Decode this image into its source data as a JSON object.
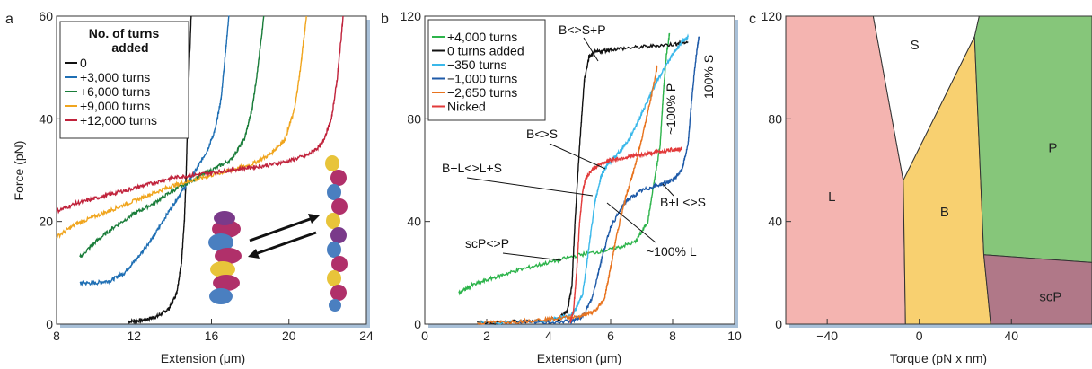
{
  "chart_data": [
    {
      "panel": "a",
      "type": "line",
      "xlabel": "Extension (μm)",
      "ylabel": "Force (pN)",
      "xlim": [
        8,
        24
      ],
      "ylim": [
        0,
        60
      ],
      "xticks": [
        8,
        12,
        16,
        20,
        24
      ],
      "yticks": [
        0,
        20,
        40,
        60
      ],
      "legend_title": "No. of turns added",
      "legend_position": "top-left",
      "series": [
        {
          "name": "0",
          "color": "#111111",
          "x": [
            11.7,
            12.5,
            13.2,
            13.8,
            14.2,
            14.45,
            14.6,
            14.7,
            14.8,
            14.95
          ],
          "y": [
            0.5,
            0.8,
            1.5,
            3,
            6,
            12,
            20,
            30,
            45,
            60
          ]
        },
        {
          "name": "+3,000 turns",
          "color": "#1f6fb4",
          "x": [
            9.2,
            10,
            10.8,
            11.5,
            12.2,
            13,
            13.8,
            14.5,
            15.2,
            15.8,
            16.2,
            16.5,
            16.7,
            16.9
          ],
          "y": [
            8,
            8,
            8.5,
            10,
            13,
            17,
            22,
            26,
            30,
            34,
            38,
            44,
            52,
            60
          ]
        },
        {
          "name": "+6,000 turns",
          "color": "#1a7d3a",
          "x": [
            9.2,
            10,
            11,
            12,
            13,
            14,
            15,
            16,
            17,
            17.7,
            18.1,
            18.4,
            18.7
          ],
          "y": [
            13,
            16,
            19,
            21.5,
            23.5,
            26,
            28,
            30,
            32,
            36,
            42,
            50,
            60
          ]
        },
        {
          "name": "+9,000 turns",
          "color": "#f0a51e",
          "x": [
            8,
            9,
            10,
            11,
            12,
            13,
            14,
            15,
            16,
            17,
            18,
            19,
            19.8,
            20.3,
            20.6,
            20.9
          ],
          "y": [
            17,
            19.5,
            21,
            22.5,
            24,
            25.5,
            27,
            28,
            29,
            30,
            31,
            33,
            36,
            42,
            50,
            60
          ]
        },
        {
          "name": "+12,000 turns",
          "color": "#c0223b",
          "x": [
            8,
            9,
            10,
            11,
            12,
            13,
            14,
            15,
            16,
            17,
            18,
            19,
            20,
            21,
            21.7,
            22.2,
            22.5,
            22.8
          ],
          "y": [
            22,
            23.5,
            24.5,
            25.5,
            26.5,
            27.5,
            28.5,
            29,
            29.5,
            30,
            30.5,
            31,
            31.8,
            33,
            35,
            40,
            48,
            60
          ]
        }
      ]
    },
    {
      "panel": "b",
      "type": "line",
      "xlabel": "Extension (μm)",
      "ylabel": "",
      "xlim": [
        0,
        10
      ],
      "ylim": [
        0,
        120
      ],
      "xticks": [
        0,
        2,
        4,
        6,
        8,
        10
      ],
      "yticks": [
        0,
        40,
        80,
        120
      ],
      "legend_position": "top-left",
      "series": [
        {
          "name": "+4,000 turns",
          "color": "#2db44b",
          "x": [
            1.1,
            1.5,
            2.2,
            3,
            4,
            5,
            6,
            6.8,
            7.2,
            7.4,
            7.6,
            7.7,
            7.8,
            7.9
          ],
          "y": [
            12,
            15,
            18,
            21,
            24,
            27,
            29,
            32,
            40,
            55,
            70,
            90,
            105,
            113
          ]
        },
        {
          "name": "0 turns added",
          "color": "#111111",
          "x": [
            1.7,
            3,
            4.3,
            4.6,
            4.75,
            4.85,
            5,
            5.15,
            5.3,
            5.5,
            6,
            7,
            8,
            8.5
          ],
          "y": [
            0.5,
            1,
            2,
            5,
            15,
            40,
            70,
            95,
            104,
            106,
            107,
            108,
            109,
            110
          ]
        },
        {
          "name": "−350 turns",
          "color": "#3ab8ea",
          "x": [
            1.7,
            4,
            4.8,
            5.1,
            5.3,
            5.5,
            5.7,
            5.9,
            6.2,
            6.6,
            7,
            7.5,
            8,
            8.3,
            8.5
          ],
          "y": [
            0.5,
            1.5,
            4,
            12,
            30,
            48,
            58,
            62,
            66,
            72,
            82,
            95,
            105,
            110,
            112
          ]
        },
        {
          "name": "−1,000 turns",
          "color": "#1e5aa8",
          "x": [
            3,
            4.7,
            5.1,
            5.4,
            5.7,
            6,
            6.5,
            7,
            7.5,
            8,
            8.3,
            8.5,
            8.6,
            8.7,
            8.8,
            8.85
          ],
          "y": [
            0.5,
            1,
            3,
            10,
            25,
            38,
            48,
            52,
            54,
            56,
            60,
            70,
            85,
            98,
            108,
            112
          ]
        },
        {
          "name": "−2,650 turns",
          "color": "#e8731e",
          "x": [
            1.7,
            3,
            4,
            5,
            5.5,
            5.8,
            6,
            6.2,
            6.5,
            6.8,
            7,
            7.3,
            7.5
          ],
          "y": [
            0.5,
            1,
            2,
            3,
            5,
            10,
            22,
            35,
            50,
            62,
            72,
            88,
            100
          ]
        },
        {
          "name": "Nicked",
          "color": "#e23a3a",
          "x": [
            4.7,
            4.8,
            4.9,
            5,
            5.1,
            5.2,
            5.4,
            5.6,
            6,
            6.5,
            7,
            7.5,
            8,
            8.3
          ],
          "y": [
            1,
            5,
            20,
            40,
            52,
            57,
            60,
            62,
            64,
            65,
            66,
            67,
            68,
            68
          ]
        }
      ],
      "annotations": [
        "B<>S+P",
        "B<>S",
        "B+L<>L+S",
        "B+L<>S",
        "~100% L",
        "scP<>P",
        "~100% P",
        "100% S"
      ]
    },
    {
      "panel": "c",
      "type": "area",
      "xlabel": "Torque (pN x nm)",
      "ylabel": "",
      "xlim": [
        -58,
        75
      ],
      "ylim": [
        0,
        120
      ],
      "xticks": [
        -40,
        0,
        40
      ],
      "yticks": [
        0,
        40,
        80,
        120
      ],
      "regions": [
        {
          "name": "L",
          "color": "#f4b4b0",
          "label_x": -38,
          "label_y": 48
        },
        {
          "name": "S",
          "color": "#ffffff",
          "label_x": -2,
          "label_y": 107
        },
        {
          "name": "B",
          "color": "#f8d070",
          "label_x": 11,
          "label_y": 42
        },
        {
          "name": "P",
          "color": "#86c67a",
          "label_x": 58,
          "label_y": 67
        },
        {
          "name": "scP",
          "color": "#b07888",
          "label_x": 57,
          "label_y": 9
        }
      ]
    }
  ],
  "labels": {
    "panel_a": "a",
    "panel_b": "b",
    "panel_c": "c",
    "legend_title_line1": "No. of turns",
    "legend_title_line2": "added"
  }
}
